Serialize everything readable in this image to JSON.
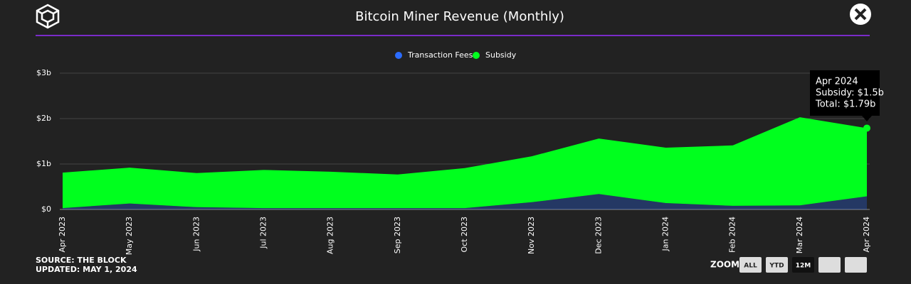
{
  "chart_data": {
    "type": "area",
    "stacked": true,
    "title": "Bitcoin Miner Revenue (Monthly)",
    "categories": [
      "Apr 2023",
      "May 2023",
      "Jun 2023",
      "Jul 2023",
      "Aug 2023",
      "Sep 2023",
      "Oct 2023",
      "Nov 2023",
      "Dec 2023",
      "Jan 2024",
      "Feb 2024",
      "Mar 2024",
      "Apr 2024"
    ],
    "series": [
      {
        "name": "Transaction Fees",
        "color": "#2b6cff",
        "values": [
          0.03,
          0.13,
          0.05,
          0.03,
          0.03,
          0.03,
          0.03,
          0.16,
          0.34,
          0.14,
          0.08,
          0.09,
          0.29
        ]
      },
      {
        "name": "Subsidy",
        "color": "#00ff1e",
        "values": [
          0.78,
          0.79,
          0.75,
          0.84,
          0.8,
          0.74,
          0.88,
          1.01,
          1.22,
          1.22,
          1.33,
          1.94,
          1.5
        ]
      }
    ],
    "ylim": [
      0,
      3
    ],
    "yticks": [
      {
        "value": 0,
        "label": "$0"
      },
      {
        "value": 1,
        "label": "$1b"
      },
      {
        "value": 2,
        "label": "$2b"
      },
      {
        "value": 3,
        "label": "$3b"
      }
    ],
    "grid": true,
    "legend": "top",
    "tooltip": {
      "title": "Apr 2024",
      "lines": [
        "Subsidy: $1.5b",
        "Total: $1.79b"
      ]
    },
    "source": "SOURCE: THE BLOCK",
    "updated": "UPDATED: MAY 1, 2024",
    "zoom": {
      "label": "ZOOM",
      "buttons": [
        "ALL",
        "YTD",
        "12M"
      ]
    }
  }
}
